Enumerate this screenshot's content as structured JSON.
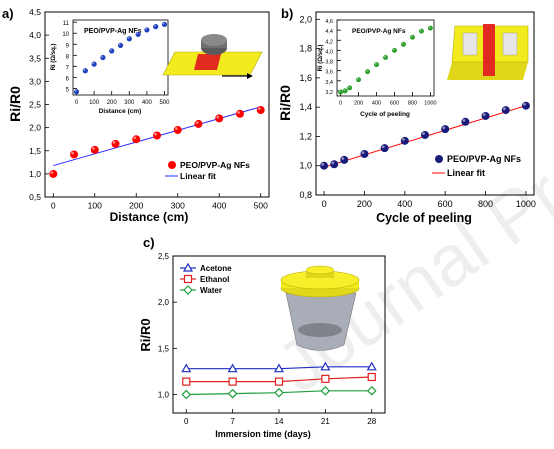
{
  "watermark": "Journal Pre-proof",
  "chart_data": [
    {
      "type": "scatter",
      "panel": "a)",
      "xlabel": "Distance (cm)",
      "ylabel": "Ri/R0",
      "xlim": [
        -20,
        520
      ],
      "ylim": [
        0.5,
        4.5
      ],
      "xticks": [
        0,
        100,
        200,
        300,
        400,
        500
      ],
      "yticks": [
        0.5,
        1.0,
        1.5,
        2.0,
        2.5,
        3.0,
        3.5,
        4.0,
        4.5
      ],
      "series": [
        {
          "name": "PEO/PVP-Ag NFs",
          "color": "#ff0000",
          "x": [
            0,
            50,
            100,
            150,
            200,
            250,
            300,
            350,
            400,
            450,
            500
          ],
          "y": [
            1.0,
            1.42,
            1.52,
            1.65,
            1.75,
            1.83,
            1.95,
            2.08,
            2.2,
            2.3,
            2.38
          ]
        },
        {
          "name": "Linear fit",
          "color": "#2b2bff",
          "kind": "line",
          "x": [
            0,
            500
          ],
          "y": [
            1.18,
            2.45
          ]
        }
      ],
      "inset": {
        "title": "PEO/PVP-Ag NFs",
        "xlabel": "Distance (cm)",
        "ylabel": "Ri (Ω/sq.)",
        "xlim": [
          -20,
          520
        ],
        "ylim": [
          4.4,
          11.2
        ],
        "xticks": [
          0,
          100,
          200,
          300,
          400,
          500
        ],
        "yticks": [
          5,
          6,
          7,
          8,
          9,
          10,
          11
        ],
        "x": [
          0,
          50,
          100,
          150,
          200,
          250,
          300,
          350,
          400,
          450,
          500
        ],
        "y": [
          4.7,
          6.6,
          7.2,
          7.8,
          8.4,
          8.9,
          9.5,
          9.9,
          10.3,
          10.6,
          10.8
        ],
        "color": "#1f3fbf"
      }
    },
    {
      "type": "scatter",
      "panel": "b)",
      "xlabel": "Cycle of peeling",
      "ylabel": "Ri/R0",
      "xlim": [
        -40,
        1040
      ],
      "ylim": [
        0.8,
        2.05
      ],
      "xticks": [
        0,
        200,
        400,
        600,
        800,
        1000
      ],
      "yticks": [
        0.8,
        1.0,
        1.2,
        1.4,
        1.6,
        1.8,
        2.0
      ],
      "series": [
        {
          "name": "PEO/PVP-Ag NFs",
          "color": "#1a1a7a",
          "x": [
            0,
            50,
            100,
            200,
            300,
            400,
            500,
            600,
            700,
            800,
            900,
            1000
          ],
          "y": [
            1.0,
            1.01,
            1.04,
            1.08,
            1.12,
            1.17,
            1.21,
            1.25,
            1.3,
            1.34,
            1.38,
            1.41
          ]
        },
        {
          "name": "Linear fit",
          "color": "#ff0000",
          "kind": "line",
          "x": [
            0,
            1000
          ],
          "y": [
            0.99,
            1.41
          ]
        }
      ],
      "inset": {
        "title": "PEO/PVP-Ag NFs",
        "xlabel": "Cycle of peeling",
        "ylabel": "Ri (Ω/sq.)",
        "xlim": [
          -40,
          1040
        ],
        "ylim": [
          3.1,
          4.6
        ],
        "xticks": [
          0,
          200,
          400,
          600,
          800,
          1000
        ],
        "yticks": [
          3.2,
          3.4,
          3.6,
          3.8,
          4.0,
          4.2,
          4.4,
          4.6
        ],
        "x": [
          0,
          50,
          100,
          200,
          300,
          400,
          500,
          600,
          700,
          800,
          900,
          1000
        ],
        "y": [
          3.18,
          3.2,
          3.26,
          3.42,
          3.58,
          3.72,
          3.86,
          4.0,
          4.12,
          4.26,
          4.38,
          4.44
        ],
        "color": "#2ea02e"
      }
    },
    {
      "type": "line",
      "panel": "c)",
      "xlabel": "Immersion time (days)",
      "ylabel": "Ri/R0",
      "xlim": [
        -2,
        30
      ],
      "ylim": [
        0.8,
        2.5
      ],
      "xticks": [
        0,
        7,
        14,
        21,
        28
      ],
      "yticks": [
        1.0,
        1.5,
        2.0,
        2.5
      ],
      "x": [
        0,
        7,
        14,
        21,
        28
      ],
      "series": [
        {
          "name": "Acetone",
          "color": "#1f2fbf",
          "marker": "triangle",
          "values": [
            1.28,
            1.28,
            1.28,
            1.3,
            1.3
          ]
        },
        {
          "name": "Ethanol",
          "color": "#e02020",
          "marker": "square",
          "values": [
            1.14,
            1.14,
            1.14,
            1.17,
            1.19
          ]
        },
        {
          "name": "Water",
          "color": "#1f9f3f",
          "marker": "diamond",
          "values": [
            1.0,
            1.01,
            1.02,
            1.04,
            1.04
          ]
        }
      ]
    }
  ],
  "labels": {
    "a_tick_y": [
      "0,5",
      "1,0",
      "1,5",
      "2,0",
      "2,5",
      "3,0",
      "3,5",
      "4,0",
      "4,5"
    ],
    "a_inset_tick_y": [
      "5",
      "6",
      "7",
      "8",
      "9",
      "10",
      "11"
    ],
    "b_tick_y": [
      "0,8",
      "1,0",
      "1,2",
      "1,4",
      "1,6",
      "1,8",
      "2,0"
    ],
    "b_inset_tick_y": [
      "3,2",
      "3,4",
      "3,6",
      "3,8",
      "4,0",
      "4,2",
      "4,4",
      "4,6"
    ],
    "c_tick_y": [
      "1,0",
      "1,5",
      "2,0",
      "2,5"
    ]
  }
}
